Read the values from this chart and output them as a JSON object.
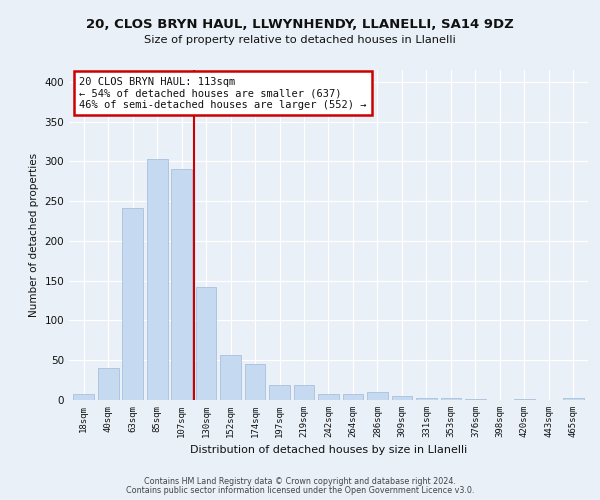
{
  "title1": "20, CLOS BRYN HAUL, LLWYNHENDY, LLANELLI, SA14 9DZ",
  "title2": "Size of property relative to detached houses in Llanelli",
  "xlabel": "Distribution of detached houses by size in Llanelli",
  "ylabel": "Number of detached properties",
  "categories": [
    "18sqm",
    "40sqm",
    "63sqm",
    "85sqm",
    "107sqm",
    "130sqm",
    "152sqm",
    "174sqm",
    "197sqm",
    "219sqm",
    "242sqm",
    "264sqm",
    "286sqm",
    "309sqm",
    "331sqm",
    "353sqm",
    "376sqm",
    "398sqm",
    "420sqm",
    "443sqm",
    "465sqm"
  ],
  "values": [
    7,
    40,
    242,
    303,
    290,
    142,
    57,
    45,
    19,
    19,
    7,
    7,
    10,
    5,
    2,
    2,
    1,
    0,
    1,
    0,
    2
  ],
  "bar_color": "#c5d9f0",
  "bar_edge_color": "#a0b8d8",
  "property_line_x": 4.5,
  "property_size": "113sqm",
  "pct_smaller": 54,
  "n_smaller": 637,
  "pct_larger_semi": 46,
  "n_larger_semi": 552,
  "annotation_box_color": "#ffffff",
  "annotation_box_edge_color": "#cc0000",
  "line_color": "#cc0000",
  "background_color": "#eaf0f8",
  "ylim": [
    0,
    415
  ],
  "footer1": "Contains HM Land Registry data © Crown copyright and database right 2024.",
  "footer2": "Contains public sector information licensed under the Open Government Licence v3.0."
}
